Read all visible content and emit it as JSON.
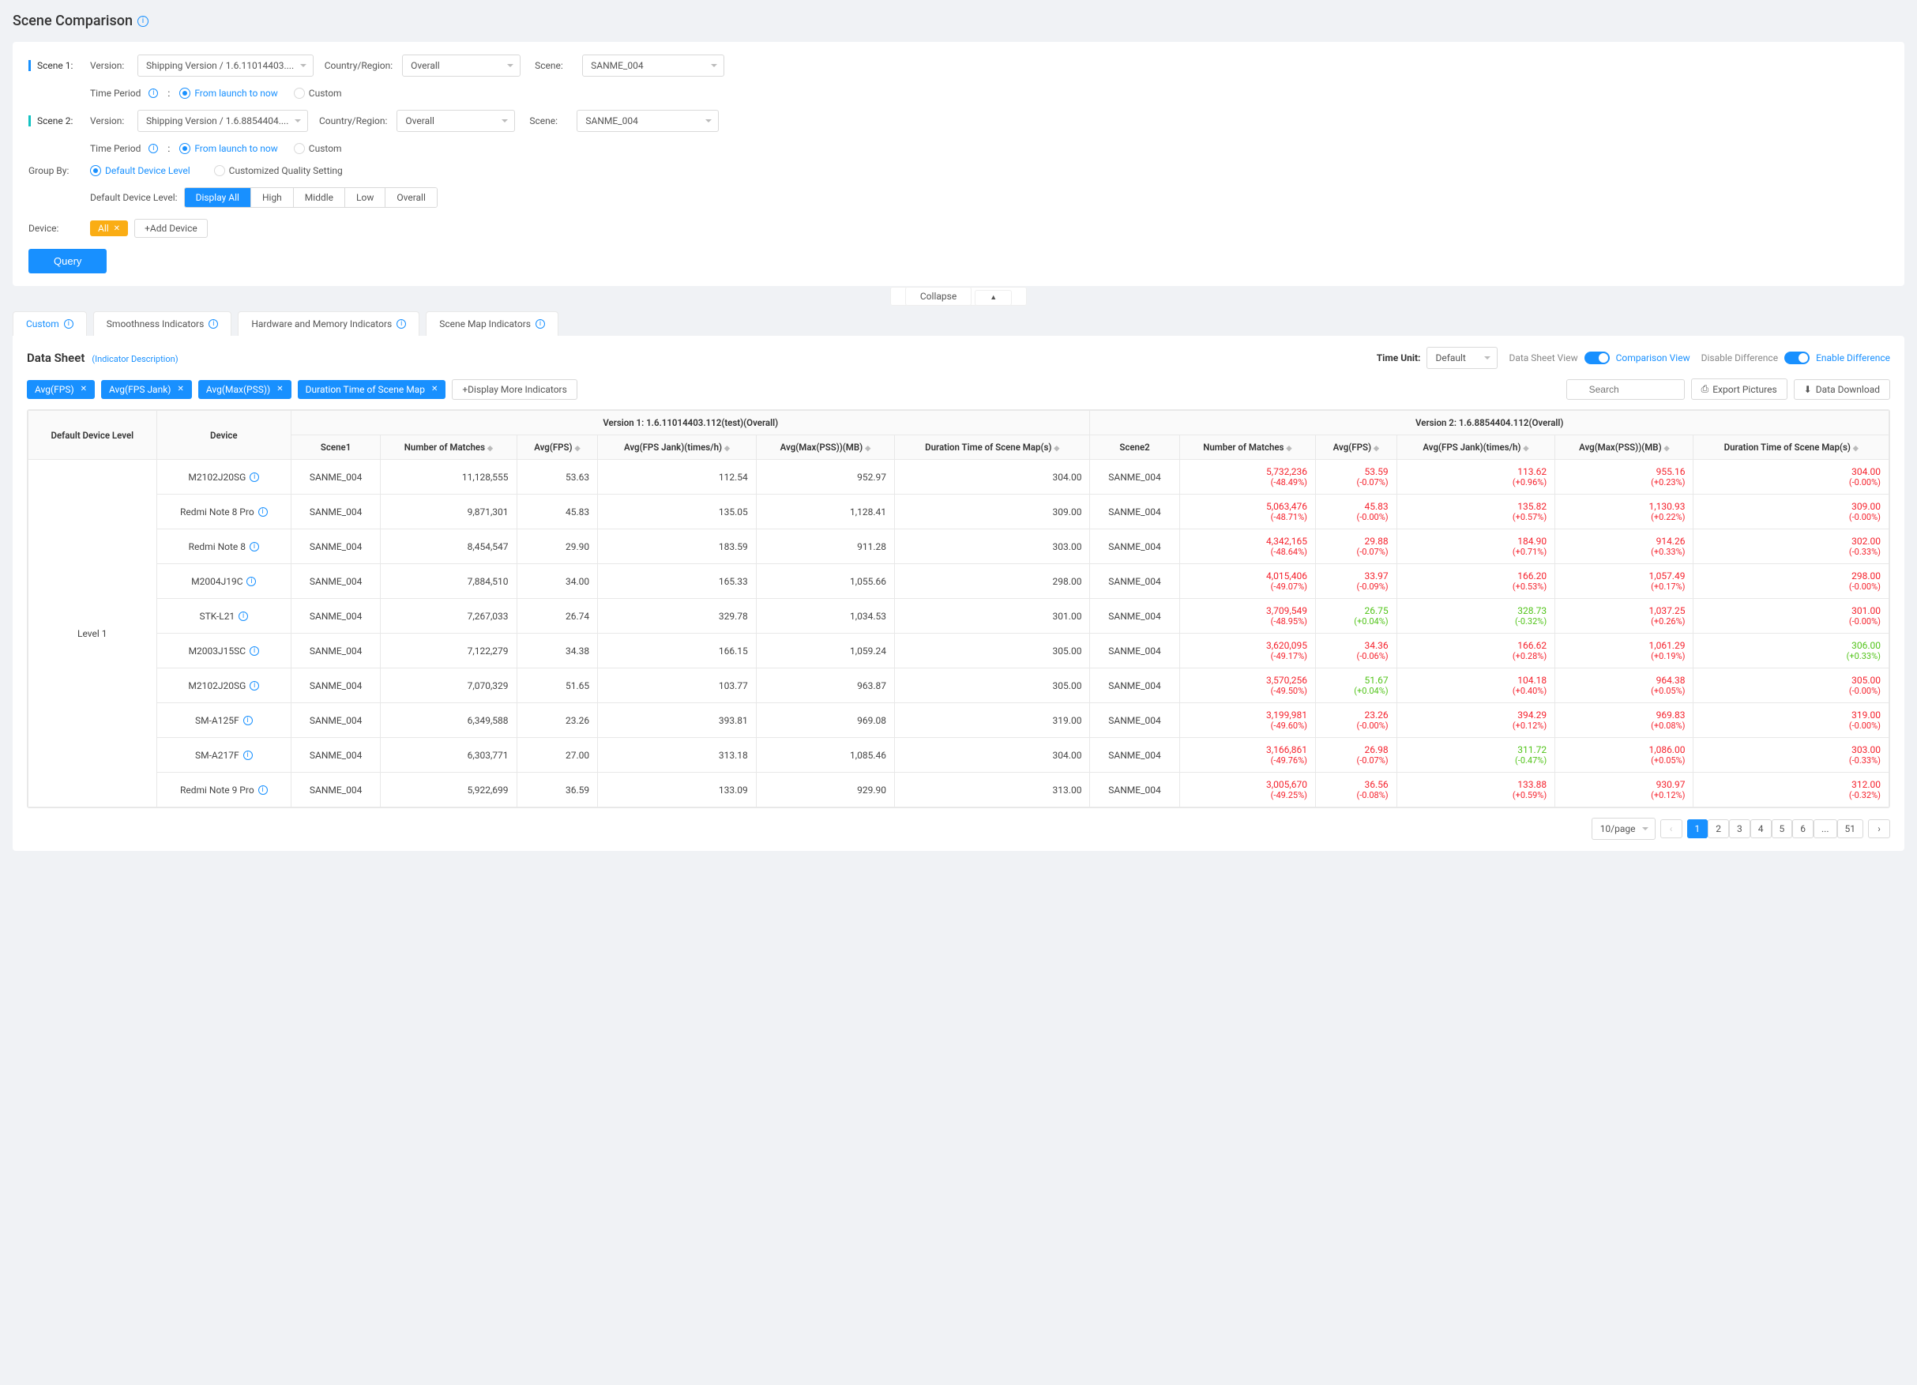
{
  "page": {
    "title": "Scene Comparison"
  },
  "filters": {
    "scene1": {
      "label": "Scene 1:",
      "version_label": "Version:",
      "version_value": "Shipping Version / 1.6.11014403....",
      "region_label": "Country/Region:",
      "region_value": "Overall",
      "scene_label": "Scene:",
      "scene_value": "SANME_004",
      "time_label": "Time Period",
      "time_opt1": "From launch to now",
      "time_opt2": "Custom"
    },
    "scene2": {
      "label": "Scene 2:",
      "version_label": "Version:",
      "version_value": "Shipping Version / 1.6.8854404....",
      "region_label": "Country/Region:",
      "region_value": "Overall",
      "scene_label": "Scene:",
      "scene_value": "SANME_004",
      "time_label": "Time Period",
      "time_opt1": "From launch to now",
      "time_opt2": "Custom"
    },
    "groupby": {
      "label": "Group By:",
      "opt1": "Default Device Level",
      "opt2": "Customized Quality Setting",
      "ddl_label": "Default Device Level:",
      "seg": [
        "Display All",
        "High",
        "Middle",
        "Low",
        "Overall"
      ]
    },
    "device": {
      "label": "Device:",
      "tag": "All",
      "add": "+Add Device"
    },
    "query": "Query",
    "collapse": "Collapse"
  },
  "tabs": [
    "Custom",
    "Smoothness Indicators",
    "Hardware and Memory Indicators",
    "Scene Map Indicators"
  ],
  "datasheet": {
    "title": "Data Sheet",
    "desc_link": "(Indicator Description)",
    "time_unit_label": "Time Unit:",
    "time_unit_value": "Default",
    "view_left": "Data Sheet View",
    "view_right": "Comparison View",
    "diff_left": "Disable Difference",
    "diff_right": "Enable Difference",
    "pills": [
      "Avg(FPS)",
      "Avg(FPS Jank)",
      "Avg(Max(PSS))",
      "Duration Time of Scene Map"
    ],
    "pill_add": "+Display More Indicators",
    "search_ph": "Search",
    "export": "Export Pictures",
    "download": "Data Download"
  },
  "table": {
    "v1_header": "Version 1:  1.6.11014403.112(test)(Overall)",
    "v2_header": "Version 2:  1.6.8854404.112(Overall)",
    "cols": {
      "level": "Default Device Level",
      "device": "Device",
      "scene1": "Scene1",
      "matches": "Number of Matches",
      "fps": "Avg(FPS)",
      "jank": "Avg(FPS Jank)(times/h)",
      "pss": "Avg(Max(PSS))(MB)",
      "dur": "Duration Time of Scene Map(s)",
      "scene2": "Scene2"
    },
    "level_label": "Level 1",
    "rows": [
      {
        "device": "M2102J20SG",
        "scene1": "SANME_004",
        "m1": "11,128,555",
        "fps1": "53.63",
        "jank1": "112.54",
        "pss1": "952.97",
        "dur1": "304.00",
        "scene2": "SANME_004",
        "m2": "5,732,236",
        "m2d": "(-48.49%)",
        "fps2": "53.59",
        "fps2d": "(-0.07%)",
        "jank2": "113.62",
        "jank2d": "(+0.96%)",
        "pss2": "955.16",
        "pss2d": "(+0.23%)",
        "dur2": "304.00",
        "dur2d": "(-0.00%)",
        "c": {
          "m2": "neg",
          "fps2": "neg",
          "jank2": "neg",
          "pss2": "neg",
          "dur2": "neg"
        }
      },
      {
        "device": "Redmi Note 8 Pro",
        "scene1": "SANME_004",
        "m1": "9,871,301",
        "fps1": "45.83",
        "jank1": "135.05",
        "pss1": "1,128.41",
        "dur1": "309.00",
        "scene2": "SANME_004",
        "m2": "5,063,476",
        "m2d": "(-48.71%)",
        "fps2": "45.83",
        "fps2d": "(-0.00%)",
        "jank2": "135.82",
        "jank2d": "(+0.57%)",
        "pss2": "1,130.93",
        "pss2d": "(+0.22%)",
        "dur2": "309.00",
        "dur2d": "(-0.00%)",
        "c": {
          "m2": "neg",
          "fps2": "neg",
          "jank2": "neg",
          "pss2": "neg",
          "dur2": "neg"
        }
      },
      {
        "device": "Redmi Note 8",
        "scene1": "SANME_004",
        "m1": "8,454,547",
        "fps1": "29.90",
        "jank1": "183.59",
        "pss1": "911.28",
        "dur1": "303.00",
        "scene2": "SANME_004",
        "m2": "4,342,165",
        "m2d": "(-48.64%)",
        "fps2": "29.88",
        "fps2d": "(-0.07%)",
        "jank2": "184.90",
        "jank2d": "(+0.71%)",
        "pss2": "914.26",
        "pss2d": "(+0.33%)",
        "dur2": "302.00",
        "dur2d": "(-0.33%)",
        "c": {
          "m2": "neg",
          "fps2": "neg",
          "jank2": "neg",
          "pss2": "neg",
          "dur2": "neg"
        }
      },
      {
        "device": "M2004J19C",
        "scene1": "SANME_004",
        "m1": "7,884,510",
        "fps1": "34.00",
        "jank1": "165.33",
        "pss1": "1,055.66",
        "dur1": "298.00",
        "scene2": "SANME_004",
        "m2": "4,015,406",
        "m2d": "(-49.07%)",
        "fps2": "33.97",
        "fps2d": "(-0.09%)",
        "jank2": "166.20",
        "jank2d": "(+0.53%)",
        "pss2": "1,057.49",
        "pss2d": "(+0.17%)",
        "dur2": "298.00",
        "dur2d": "(-0.00%)",
        "c": {
          "m2": "neg",
          "fps2": "neg",
          "jank2": "neg",
          "pss2": "neg",
          "dur2": "neg"
        }
      },
      {
        "device": "STK-L21",
        "scene1": "SANME_004",
        "m1": "7,267,033",
        "fps1": "26.74",
        "jank1": "329.78",
        "pss1": "1,034.53",
        "dur1": "301.00",
        "scene2": "SANME_004",
        "m2": "3,709,549",
        "m2d": "(-48.95%)",
        "fps2": "26.75",
        "fps2d": "(+0.04%)",
        "jank2": "328.73",
        "jank2d": "(-0.32%)",
        "pss2": "1,037.25",
        "pss2d": "(+0.26%)",
        "dur2": "301.00",
        "dur2d": "(-0.00%)",
        "c": {
          "m2": "neg",
          "fps2": "pos",
          "jank2": "pos",
          "pss2": "neg",
          "dur2": "neg"
        }
      },
      {
        "device": "M2003J15SC",
        "scene1": "SANME_004",
        "m1": "7,122,279",
        "fps1": "34.38",
        "jank1": "166.15",
        "pss1": "1,059.24",
        "dur1": "305.00",
        "scene2": "SANME_004",
        "m2": "3,620,095",
        "m2d": "(-49.17%)",
        "fps2": "34.36",
        "fps2d": "(-0.06%)",
        "jank2": "166.62",
        "jank2d": "(+0.28%)",
        "pss2": "1,061.29",
        "pss2d": "(+0.19%)",
        "dur2": "306.00",
        "dur2d": "(+0.33%)",
        "c": {
          "m2": "neg",
          "fps2": "neg",
          "jank2": "neg",
          "pss2": "neg",
          "dur2": "pos"
        }
      },
      {
        "device": "M2102J20SG",
        "scene1": "SANME_004",
        "m1": "7,070,329",
        "fps1": "51.65",
        "jank1": "103.77",
        "pss1": "963.87",
        "dur1": "305.00",
        "scene2": "SANME_004",
        "m2": "3,570,256",
        "m2d": "(-49.50%)",
        "fps2": "51.67",
        "fps2d": "(+0.04%)",
        "jank2": "104.18",
        "jank2d": "(+0.40%)",
        "pss2": "964.38",
        "pss2d": "(+0.05%)",
        "dur2": "305.00",
        "dur2d": "(-0.00%)",
        "c": {
          "m2": "neg",
          "fps2": "pos",
          "jank2": "neg",
          "pss2": "neg",
          "dur2": "neg"
        }
      },
      {
        "device": "SM-A125F",
        "scene1": "SANME_004",
        "m1": "6,349,588",
        "fps1": "23.26",
        "jank1": "393.81",
        "pss1": "969.08",
        "dur1": "319.00",
        "scene2": "SANME_004",
        "m2": "3,199,981",
        "m2d": "(-49.60%)",
        "fps2": "23.26",
        "fps2d": "(-0.00%)",
        "jank2": "394.29",
        "jank2d": "(+0.12%)",
        "pss2": "969.83",
        "pss2d": "(+0.08%)",
        "dur2": "319.00",
        "dur2d": "(-0.00%)",
        "c": {
          "m2": "neg",
          "fps2": "neg",
          "jank2": "neg",
          "pss2": "neg",
          "dur2": "neg"
        }
      },
      {
        "device": "SM-A217F",
        "scene1": "SANME_004",
        "m1": "6,303,771",
        "fps1": "27.00",
        "jank1": "313.18",
        "pss1": "1,085.46",
        "dur1": "304.00",
        "scene2": "SANME_004",
        "m2": "3,166,861",
        "m2d": "(-49.76%)",
        "fps2": "26.98",
        "fps2d": "(-0.07%)",
        "jank2": "311.72",
        "jank2d": "(-0.47%)",
        "pss2": "1,086.00",
        "pss2d": "(+0.05%)",
        "dur2": "303.00",
        "dur2d": "(-0.33%)",
        "c": {
          "m2": "neg",
          "fps2": "neg",
          "jank2": "pos",
          "pss2": "neg",
          "dur2": "neg"
        }
      },
      {
        "device": "Redmi Note 9 Pro",
        "scene1": "SANME_004",
        "m1": "5,922,699",
        "fps1": "36.59",
        "jank1": "133.09",
        "pss1": "929.90",
        "dur1": "313.00",
        "scene2": "SANME_004",
        "m2": "3,005,670",
        "m2d": "(-49.25%)",
        "fps2": "36.56",
        "fps2d": "(-0.08%)",
        "jank2": "133.88",
        "jank2d": "(+0.59%)",
        "pss2": "930.97",
        "pss2d": "(+0.12%)",
        "dur2": "312.00",
        "dur2d": "(-0.32%)",
        "c": {
          "m2": "neg",
          "fps2": "neg",
          "jank2": "neg",
          "pss2": "neg",
          "dur2": "neg"
        }
      }
    ]
  },
  "pager": {
    "size": "10/page",
    "pages": [
      "1",
      "2",
      "3",
      "4",
      "5",
      "6",
      "...",
      "51"
    ]
  }
}
